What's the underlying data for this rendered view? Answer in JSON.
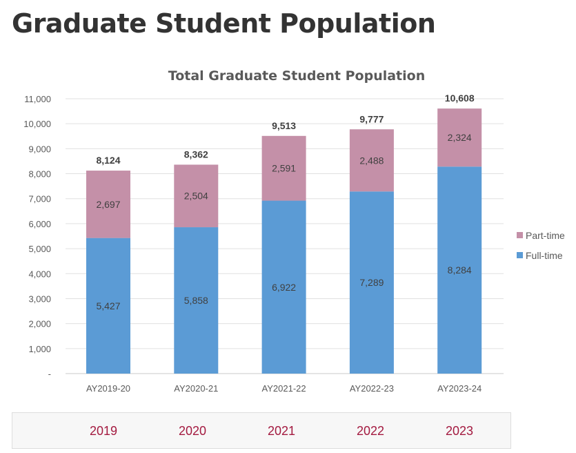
{
  "page_title": "Graduate Student Population",
  "chart_data": {
    "type": "bar",
    "stacked": true,
    "title": "Total Graduate Student Population",
    "categories": [
      "AY2019-20",
      "AY2020-21",
      "AY2021-22",
      "AY2022-23",
      "AY2023-24"
    ],
    "series": [
      {
        "name": "Full-time",
        "color": "#5b9bd5",
        "values": [
          5427,
          5858,
          6922,
          7289,
          8284
        ],
        "labels": [
          "5,427",
          "5,858",
          "6,922",
          "7,289",
          "8,284"
        ]
      },
      {
        "name": "Part-time",
        "color": "#c490a8",
        "values": [
          2697,
          2504,
          2591,
          2488,
          2324
        ],
        "labels": [
          "2,697",
          "2,504",
          "2,591",
          "2,488",
          "2,324"
        ]
      }
    ],
    "totals": [
      "8,124",
      "8,362",
      "9,513",
      "9,777",
      "10,608"
    ],
    "ylim": [
      0,
      11000
    ],
    "yticks": [
      0,
      1000,
      2000,
      3000,
      4000,
      5000,
      6000,
      7000,
      8000,
      9000,
      10000,
      11000
    ],
    "ytick_labels": [
      "-",
      "1,000",
      "2,000",
      "3,000",
      "4,000",
      "5,000",
      "6,000",
      "7,000",
      "8,000",
      "9,000",
      "10,000",
      "11,000"
    ],
    "grid": true,
    "legend": [
      "Part-time",
      "Full-time"
    ],
    "legend_position": "right"
  },
  "tabs": [
    "2019",
    "2020",
    "2021",
    "2022",
    "2023"
  ]
}
